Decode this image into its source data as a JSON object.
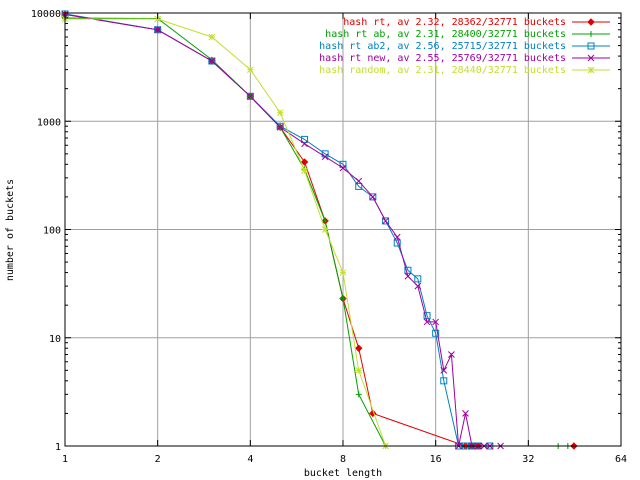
{
  "chart_data": {
    "type": "line",
    "xlabel": "bucket length",
    "ylabel": "number of buckets",
    "x_scale": "log2",
    "y_scale": "log10",
    "xlim": [
      1,
      64
    ],
    "ylim": [
      1,
      10000
    ],
    "grid": true,
    "legend_position": "top-right",
    "x_ticks": [
      "1",
      "2",
      "4",
      "8",
      "16",
      "32",
      "64"
    ],
    "y_ticks": [
      "1",
      "10",
      "100",
      "1000",
      "10000"
    ],
    "series": [
      {
        "name": "hash rt, av 2.32, 28362/32771 buckets",
        "color": "#e00000",
        "marker": "diamond",
        "points": [
          [
            1,
            9700
          ],
          [
            2,
            7000
          ],
          [
            3,
            3600
          ],
          [
            4,
            1700
          ],
          [
            5,
            880
          ],
          [
            6,
            420
          ],
          [
            7,
            120
          ],
          [
            8,
            23
          ],
          [
            9,
            8
          ],
          [
            10,
            2
          ],
          [
            20,
            1
          ],
          [
            21,
            1
          ],
          [
            22,
            1
          ],
          [
            45,
            1
          ]
        ]
      },
      {
        "name": "hash rt ab, av 2.31, 28400/32771 buckets",
        "color": "#00a000",
        "marker": "plus",
        "points": [
          [
            1,
            9000
          ],
          [
            2,
            8900
          ],
          [
            3,
            3700
          ],
          [
            4,
            1700
          ],
          [
            5,
            880
          ],
          [
            6,
            360
          ],
          [
            7,
            120
          ],
          [
            8,
            23
          ],
          [
            9,
            3
          ],
          [
            11,
            1
          ],
          [
            20,
            1
          ],
          [
            21,
            1
          ],
          [
            40,
            1
          ],
          [
            43,
            1
          ]
        ]
      },
      {
        "name": "hash rt ab2, av 2.56, 25715/32771 buckets",
        "color": "#0080c0",
        "marker": "square",
        "points": [
          [
            1,
            9800
          ],
          [
            2,
            7000
          ],
          [
            3,
            3600
          ],
          [
            4,
            1700
          ],
          [
            5,
            900
          ],
          [
            6,
            680
          ],
          [
            7,
            500
          ],
          [
            8,
            400
          ],
          [
            9,
            250
          ],
          [
            10,
            200
          ],
          [
            11,
            120
          ],
          [
            12,
            75
          ],
          [
            13,
            42
          ],
          [
            14,
            35
          ],
          [
            15,
            16
          ],
          [
            16,
            11
          ],
          [
            17,
            4
          ],
          [
            19,
            1
          ],
          [
            20,
            1
          ],
          [
            21,
            1
          ],
          [
            22,
            1
          ],
          [
            24,
            1
          ]
        ]
      },
      {
        "name": "hash rt new, av 2.55, 25769/32771 buckets",
        "color": "#a000a0",
        "marker": "cross",
        "points": [
          [
            1,
            9700
          ],
          [
            2,
            7000
          ],
          [
            3,
            3600
          ],
          [
            4,
            1700
          ],
          [
            5,
            880
          ],
          [
            6,
            620
          ],
          [
            7,
            470
          ],
          [
            8,
            370
          ],
          [
            9,
            280
          ],
          [
            10,
            200
          ],
          [
            11,
            120
          ],
          [
            12,
            85
          ],
          [
            13,
            37
          ],
          [
            14,
            30
          ],
          [
            15,
            14
          ],
          [
            16,
            14
          ],
          [
            17,
            5
          ],
          [
            18,
            7
          ],
          [
            19,
            1
          ],
          [
            20,
            2
          ],
          [
            21,
            1
          ],
          [
            22,
            1
          ],
          [
            23,
            1
          ],
          [
            24,
            1
          ],
          [
            26,
            1
          ]
        ]
      },
      {
        "name": "hash random, av 2.31, 28440/32771 buckets",
        "color": "#c0e030",
        "marker": "star",
        "points": [
          [
            1,
            8800
          ],
          [
            2,
            8800
          ],
          [
            3,
            6000
          ],
          [
            4,
            3000
          ],
          [
            5,
            1200
          ],
          [
            6,
            350
          ],
          [
            7,
            100
          ],
          [
            8,
            40
          ],
          [
            9,
            5
          ],
          [
            11,
            1
          ]
        ]
      }
    ]
  }
}
